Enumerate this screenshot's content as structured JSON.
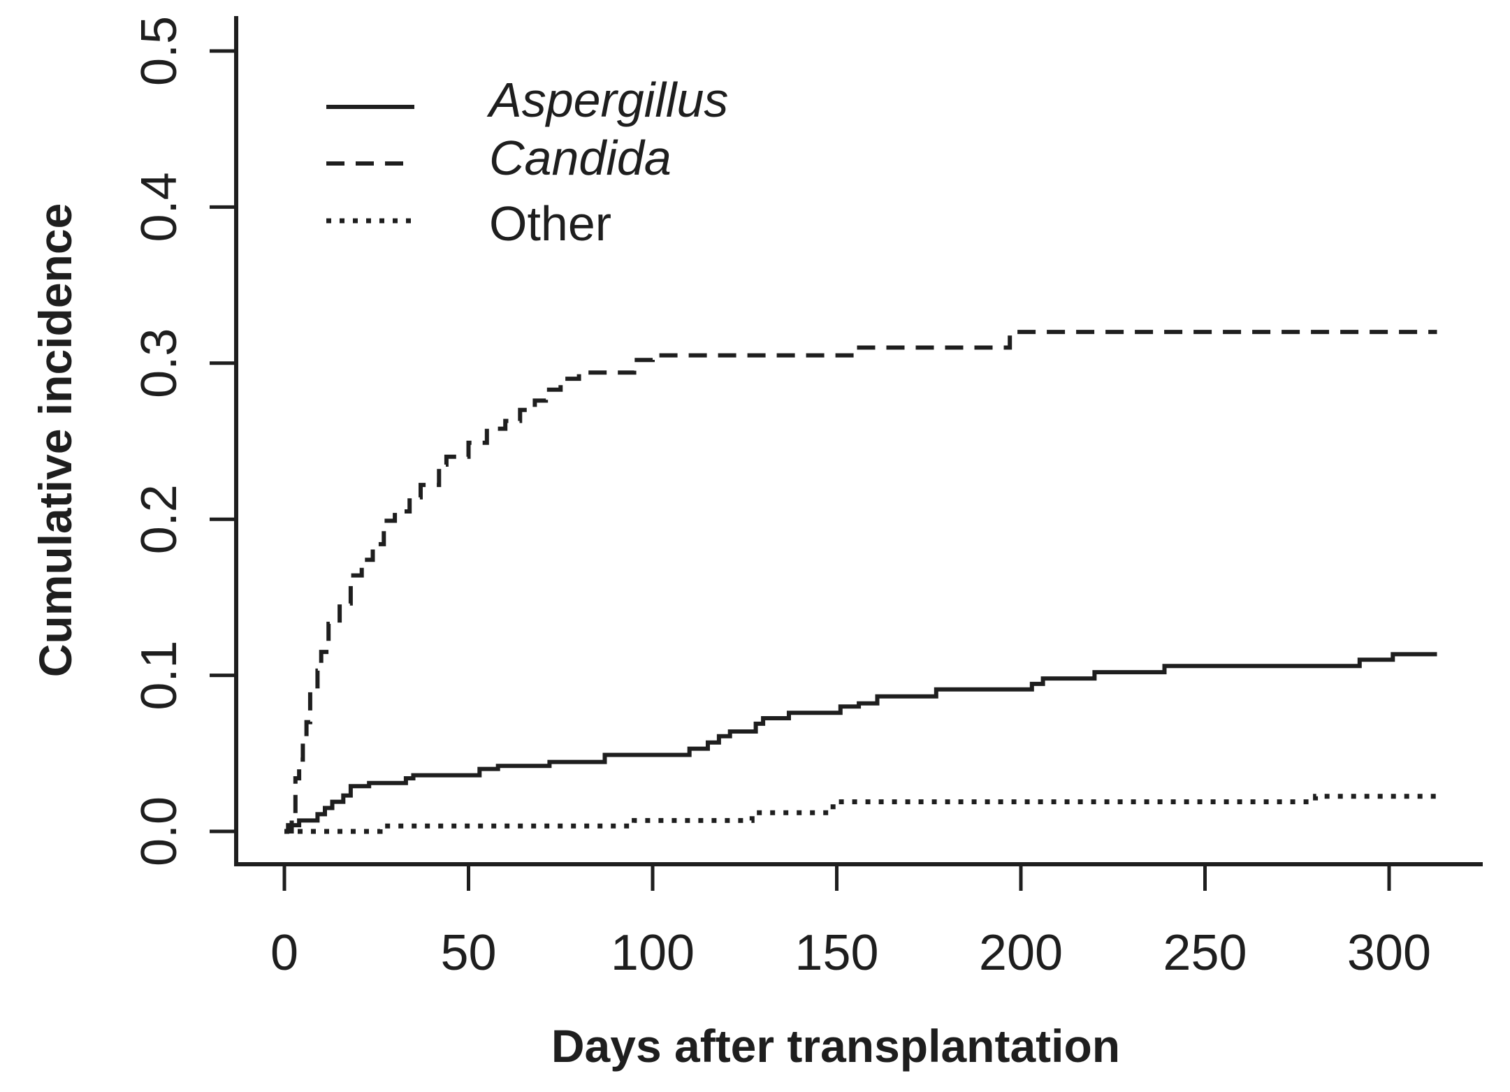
{
  "figure": {
    "background": "#ffffff",
    "line_color": "#1e1e1e",
    "text_color": "#1e1e1e"
  },
  "chart_data": {
    "type": "line",
    "line_shape": "step",
    "title": "",
    "xlabel": "Days after transplantation",
    "ylabel": "Cumulative incidence",
    "xlim": [
      0,
      325
    ],
    "ylim": [
      0,
      0.5
    ],
    "x_ticks": [
      0,
      50,
      100,
      150,
      200,
      250,
      300
    ],
    "y_ticks": [
      0.0,
      0.1,
      0.2,
      0.3,
      0.4,
      0.5
    ],
    "y_tick_labels": [
      "0.0",
      "0.1",
      "0.2",
      "0.3",
      "0.4",
      "0.5"
    ],
    "grid": false,
    "legend_position": "top-left-inside",
    "series": [
      {
        "name": "Aspergillus",
        "line_style": "solid",
        "italic_label": true,
        "color": "#1e1e1e",
        "points": [
          [
            0,
            0
          ],
          [
            1,
            0.004
          ],
          [
            4,
            0.007
          ],
          [
            9,
            0.011
          ],
          [
            11,
            0.015
          ],
          [
            13,
            0.019
          ],
          [
            16,
            0.023
          ],
          [
            18,
            0.029
          ],
          [
            23,
            0.031
          ],
          [
            33,
            0.034
          ],
          [
            35,
            0.036
          ],
          [
            53,
            0.04
          ],
          [
            58,
            0.042
          ],
          [
            72,
            0.0445
          ],
          [
            87,
            0.049
          ],
          [
            110,
            0.053
          ],
          [
            115,
            0.057
          ],
          [
            118,
            0.061
          ],
          [
            121,
            0.064
          ],
          [
            128,
            0.069
          ],
          [
            130,
            0.0725
          ],
          [
            137,
            0.076
          ],
          [
            151,
            0.08
          ],
          [
            156,
            0.082
          ],
          [
            161,
            0.0865
          ],
          [
            177,
            0.091
          ],
          [
            203,
            0.0945
          ],
          [
            206,
            0.098
          ],
          [
            220,
            0.102
          ],
          [
            239,
            0.106
          ],
          [
            292,
            0.11
          ],
          [
            301,
            0.1135
          ],
          [
            313,
            0.1135
          ]
        ]
      },
      {
        "name": "Candida",
        "line_style": "dashed",
        "italic_label": true,
        "color": "#1e1e1e",
        "points": [
          [
            0,
            0
          ],
          [
            2,
            0.01
          ],
          [
            3,
            0.034
          ],
          [
            4,
            0.046
          ],
          [
            5,
            0.057
          ],
          [
            6,
            0.07
          ],
          [
            7,
            0.091
          ],
          [
            9,
            0.103
          ],
          [
            10,
            0.115
          ],
          [
            12,
            0.133
          ],
          [
            15,
            0.146
          ],
          [
            18,
            0.164
          ],
          [
            21,
            0.174
          ],
          [
            24,
            0.184
          ],
          [
            27,
            0.199
          ],
          [
            30,
            0.205
          ],
          [
            34,
            0.214
          ],
          [
            37,
            0.222
          ],
          [
            42,
            0.235
          ],
          [
            44,
            0.24
          ],
          [
            50,
            0.249
          ],
          [
            55,
            0.258
          ],
          [
            60,
            0.263
          ],
          [
            64,
            0.27
          ],
          [
            68,
            0.276
          ],
          [
            71,
            0.283
          ],
          [
            75,
            0.29
          ],
          [
            80,
            0.294
          ],
          [
            95,
            0.302
          ],
          [
            100,
            0.305
          ],
          [
            155,
            0.31
          ],
          [
            197,
            0.32
          ],
          [
            313,
            0.32
          ]
        ]
      },
      {
        "name": "Other",
        "line_style": "dotted",
        "italic_label": false,
        "color": "#1e1e1e",
        "points": [
          [
            0,
            0
          ],
          [
            26,
            0.0035
          ],
          [
            95,
            0.007
          ],
          [
            127,
            0.012
          ],
          [
            149,
            0.019
          ],
          [
            280,
            0.0225
          ],
          [
            313,
            0.0225
          ]
        ]
      }
    ]
  }
}
